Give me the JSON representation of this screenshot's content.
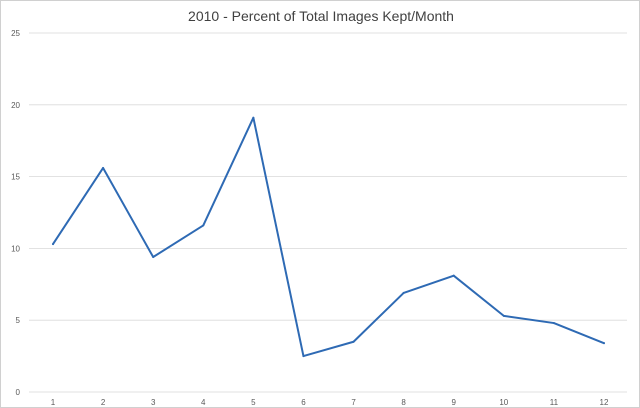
{
  "chart_data": {
    "type": "line",
    "title": "2010 - Percent of Total Images Kept/Month",
    "xlabel": "",
    "ylabel": "",
    "categories": [
      "1",
      "2",
      "3",
      "4",
      "5",
      "6",
      "7",
      "8",
      "9",
      "10",
      "11",
      "12"
    ],
    "series": [
      {
        "values": [
          10.3,
          15.6,
          9.4,
          11.6,
          19.1,
          2.5,
          3.5,
          6.9,
          8.1,
          5.3,
          4.8,
          3.4
        ],
        "color": "#2e6ab4"
      }
    ],
    "ylim": [
      0,
      25
    ],
    "yticks": [
      0,
      5,
      10,
      15,
      20,
      25
    ],
    "grid": true,
    "legend": "none",
    "gridline_color": "#d9d9d9"
  }
}
